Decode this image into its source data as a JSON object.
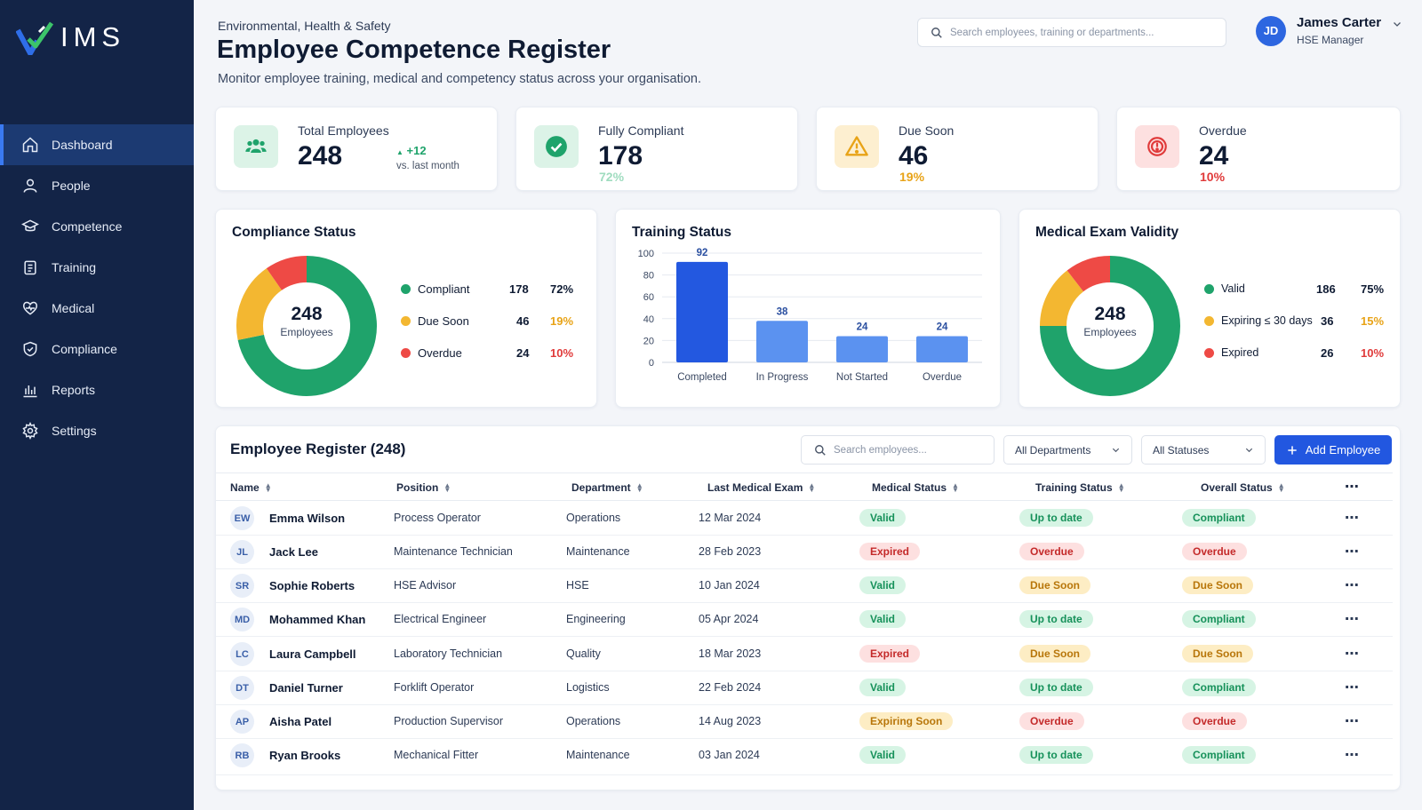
{
  "app": {
    "logo": "IMS"
  },
  "nav": [
    {
      "label": "Dashboard",
      "icon": "home-icon"
    },
    {
      "label": "People",
      "icon": "person-icon"
    },
    {
      "label": "Competence",
      "icon": "graduation-cap-icon"
    },
    {
      "label": "Training",
      "icon": "clipboard-icon"
    },
    {
      "label": "Medical",
      "icon": "heart-pulse-icon"
    },
    {
      "label": "Compliance",
      "icon": "shield-check-icon"
    },
    {
      "label": "Reports",
      "icon": "bar-chart-icon"
    },
    {
      "label": "Settings",
      "icon": "gear-icon"
    }
  ],
  "header": {
    "section": "Environmental, Health & Safety",
    "title": "Employee Competence Register",
    "description": "Monitor employee training, medical and competency status across your organisation.",
    "search_placeholder": "Search employees, training or departments..."
  },
  "user": {
    "initials": "JD",
    "name": "James Carter",
    "role": "HSE Manager"
  },
  "kpis": [
    {
      "label": "Total Employees",
      "value": "248",
      "trend": "+12",
      "trend_sub": "vs. last month",
      "icon": "people-icon",
      "color": "#1fa36b"
    },
    {
      "label": "Fully Compliant",
      "value": "178",
      "pct": "72%",
      "icon": "check-circle-icon",
      "color": "#1fa36b"
    },
    {
      "label": "Due Soon",
      "value": "46",
      "pct": "19%",
      "icon": "warning-icon",
      "color": "#e8a317"
    },
    {
      "label": "Overdue",
      "value": "24",
      "pct": "10%",
      "icon": "alert-circle-icon",
      "color": "#e03a3a"
    }
  ],
  "compliance": {
    "title": "Compliance Status",
    "center_value": "248",
    "center_label": "Employees",
    "items": [
      {
        "label": "Compliant",
        "value": "178",
        "pct": "72%",
        "color": "#1fa36b"
      },
      {
        "label": "Due Soon",
        "value": "46",
        "pct": "19%",
        "color": "#f3b731"
      },
      {
        "label": "Overdue",
        "value": "24",
        "pct": "10%",
        "color": "#ee4a45"
      }
    ]
  },
  "chart_data": {
    "type": "bar",
    "title": "Training Status",
    "categories": [
      "Completed",
      "In Progress",
      "Not Started",
      "Overdue"
    ],
    "values": [
      92,
      38,
      24,
      24
    ],
    "ylim": [
      0,
      100
    ],
    "yticks": [
      "100",
      "80",
      "60",
      "40",
      "20",
      "0"
    ],
    "grid": true,
    "colors": [
      "#2358e0",
      "#5b92f0",
      "#5b92f0",
      "#5b92f0"
    ]
  },
  "medical": {
    "title": "Medical Exam Validity",
    "center_value": "248",
    "center_label": "Employees",
    "items": [
      {
        "label": "Valid",
        "value": "186",
        "pct": "75%",
        "color": "#1fa36b"
      },
      {
        "label": "Expiring ≤ 30 days",
        "value": "36",
        "pct": "15%",
        "color": "#f3b731"
      },
      {
        "label": "Expired",
        "value": "26",
        "pct": "10%",
        "color": "#ee4a45"
      }
    ]
  },
  "register": {
    "title": "Employee Register (248)",
    "search_placeholder": "Search employees...",
    "dept_filter": "All Departments",
    "status_filter": "All Statuses",
    "add_label": "Add Employee",
    "columns": [
      "Name",
      "Position",
      "Department",
      "Last Medical Exam",
      "Medical Status",
      "Training Status",
      "Overall Status"
    ],
    "rows": [
      {
        "initials": "EW",
        "name": "Emma Wilson",
        "position": "Process Operator",
        "department": "Operations",
        "last_exam": "12 Mar 2024",
        "medical": "Valid",
        "medical_tone": "green",
        "training": "Up to date",
        "training_tone": "green",
        "overall": "Compliant",
        "overall_tone": "green"
      },
      {
        "initials": "JL",
        "name": "Jack Lee",
        "position": "Maintenance Technician",
        "department": "Maintenance",
        "last_exam": "28 Feb 2023",
        "medical": "Expired",
        "medical_tone": "red",
        "training": "Overdue",
        "training_tone": "red",
        "overall": "Overdue",
        "overall_tone": "red"
      },
      {
        "initials": "SR",
        "name": "Sophie Roberts",
        "position": "HSE Advisor",
        "department": "HSE",
        "last_exam": "10 Jan 2024",
        "medical": "Valid",
        "medical_tone": "green",
        "training": "Due Soon",
        "training_tone": "yellow",
        "overall": "Due Soon",
        "overall_tone": "yellow"
      },
      {
        "initials": "MD",
        "name": "Mohammed Khan",
        "position": "Electrical Engineer",
        "department": "Engineering",
        "last_exam": "05 Apr 2024",
        "medical": "Valid",
        "medical_tone": "green",
        "training": "Up to date",
        "training_tone": "green",
        "overall": "Compliant",
        "overall_tone": "green"
      },
      {
        "initials": "LC",
        "name": "Laura Campbell",
        "position": "Laboratory Technician",
        "department": "Quality",
        "last_exam": "18 Mar 2023",
        "medical": "Expired",
        "medical_tone": "red",
        "training": "Due Soon",
        "training_tone": "yellow",
        "overall": "Due Soon",
        "overall_tone": "yellow"
      },
      {
        "initials": "DT",
        "name": "Daniel Turner",
        "position": "Forklift Operator",
        "department": "Logistics",
        "last_exam": "22 Feb 2024",
        "medical": "Valid",
        "medical_tone": "green",
        "training": "Up to date",
        "training_tone": "green",
        "overall": "Compliant",
        "overall_tone": "green"
      },
      {
        "initials": "AP",
        "name": "Aisha Patel",
        "position": "Production Supervisor",
        "department": "Operations",
        "last_exam": "14 Aug 2023",
        "medical": "Expiring Soon",
        "medical_tone": "yellow",
        "training": "Overdue",
        "training_tone": "red",
        "overall": "Overdue",
        "overall_tone": "red"
      },
      {
        "initials": "RB",
        "name": "Ryan Brooks",
        "position": "Mechanical Fitter",
        "department": "Maintenance",
        "last_exam": "03 Jan 2024",
        "medical": "Valid",
        "medical_tone": "green",
        "training": "Up to date",
        "training_tone": "green",
        "overall": "Compliant",
        "overall_tone": "green"
      }
    ]
  }
}
